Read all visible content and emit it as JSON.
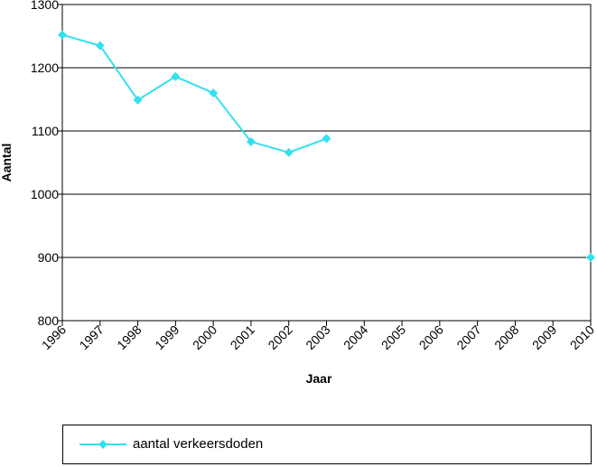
{
  "chart_data": {
    "type": "line",
    "title": "",
    "xlabel": "Jaar",
    "ylabel": "Aantal",
    "categories": [
      "1996",
      "1997",
      "1998",
      "1999",
      "2000",
      "2001",
      "2002",
      "2003",
      "2004",
      "2005",
      "2006",
      "2007",
      "2008",
      "2009",
      "2010"
    ],
    "ylim": [
      800,
      1300
    ],
    "yticks": [
      "800",
      "900",
      "1000",
      "1100",
      "1200",
      "1300"
    ],
    "grid": true,
    "legend_position": "bottom",
    "series": [
      {
        "name": "aantal verkeersdoden",
        "color": "#33e0f0",
        "marker": "diamond",
        "values": [
          1252,
          1235,
          1149,
          1186,
          1160,
          1083,
          1066,
          1088,
          null,
          null,
          null,
          null,
          null,
          null,
          900
        ]
      }
    ]
  },
  "legend": {
    "label": "aantal verkeersdoden"
  }
}
